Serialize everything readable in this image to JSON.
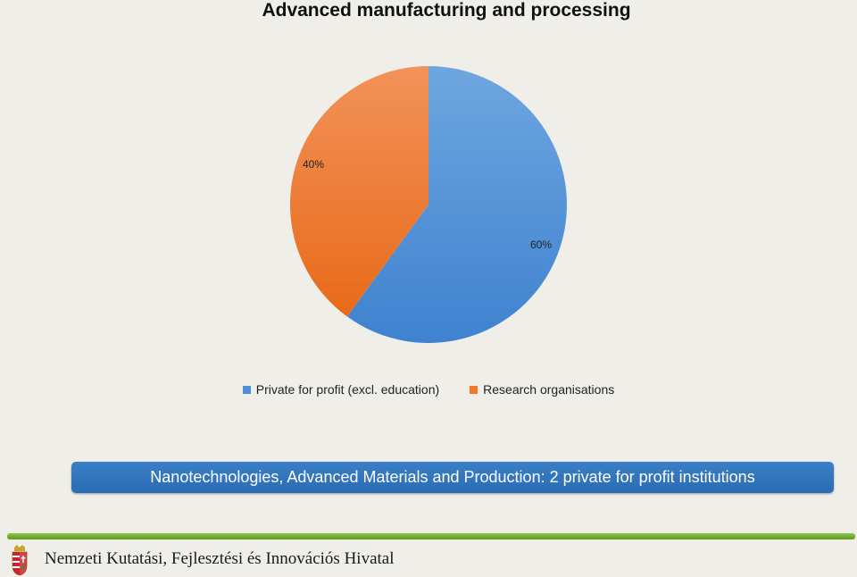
{
  "chart_data": {
    "type": "pie",
    "title": "Advanced manufacturing and processing",
    "slices": [
      {
        "label": "Private for profit (excl. education)",
        "value": 60,
        "data_label": "60%",
        "color": "#4f8fd6"
      },
      {
        "label": "Research organisations",
        "value": 40,
        "data_label": "40%",
        "color": "#ee7b29"
      }
    ],
    "legend_position": "bottom"
  },
  "banner": {
    "text": "Nanotechnologies, Advanced Materials and Production: 2 private for profit institutions",
    "color": "#2f73bd"
  },
  "footer": {
    "agency": "Nemzeti Kutatási, Fejlesztési és Innovációs Hivatal",
    "bar_color": "#7bb23a",
    "crest_icon": "hungarian-coat-of-arms-icon"
  }
}
